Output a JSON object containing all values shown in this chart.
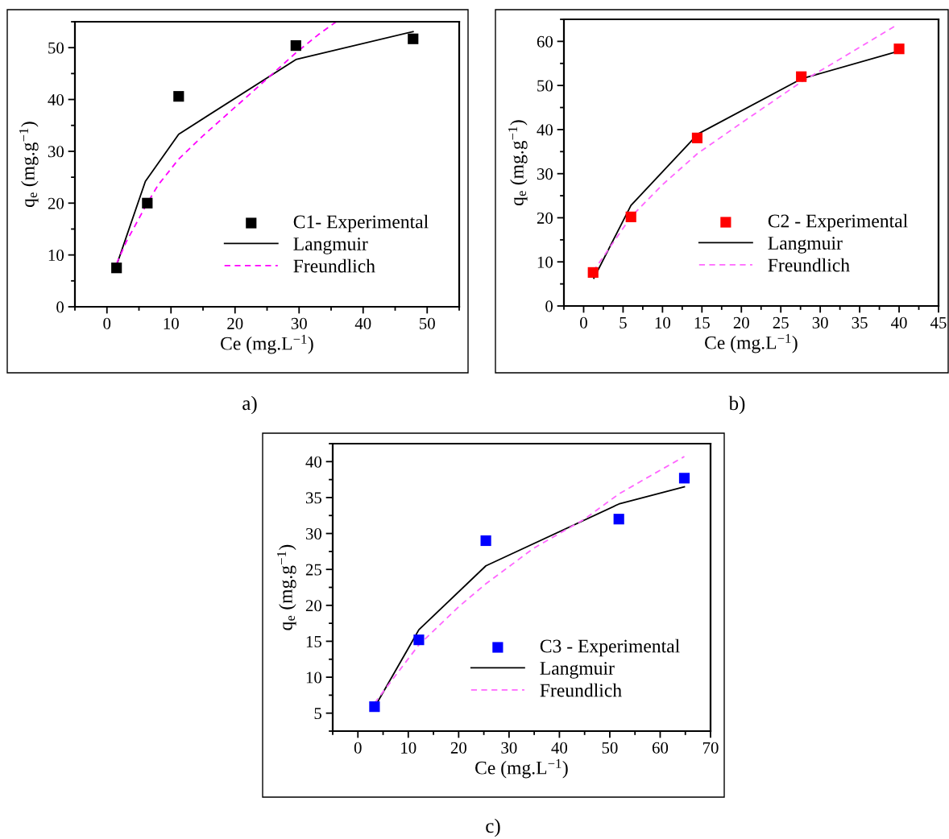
{
  "chart_data": [
    {
      "type": "line",
      "xlabel": "Ce (mg.L$^{−1}$)",
      "ylabel": "q$_{e}$ (mg.g$^{−1}$)",
      "annotations": [
        "a)"
      ],
      "xlim": [
        -5,
        55
      ],
      "ylim": [
        0,
        55
      ],
      "xticks": [
        0,
        10,
        20,
        30,
        40,
        50
      ],
      "yticks": [
        0,
        10,
        20,
        30,
        40,
        50
      ],
      "legend": "bottom right",
      "grid": false,
      "series": [
        {
          "name": "C1- Experimental",
          "type": "scatter",
          "marker": "square",
          "color": "#000000",
          "x": [
            1.5,
            6.3,
            11.2,
            29.5,
            47.8
          ],
          "values": [
            7.5,
            20,
            40.6,
            50.4,
            51.7
          ]
        },
        {
          "name": "Langmuir",
          "type": "line",
          "line_style": "solid",
          "color": "#000000",
          "x": [
            1.5,
            6,
            11.2,
            29.5,
            47.8
          ],
          "values": [
            8,
            24.2,
            33.3,
            47.7,
            53.1
          ]
        },
        {
          "name": "Freundlich",
          "type": "line",
          "line_style": "dashed",
          "color": "#ff00ff",
          "x": [
            1.5,
            3,
            6.3,
            8,
            11.2,
            15,
            20,
            25,
            29.5,
            33,
            35.8
          ],
          "values": [
            8.3,
            12.5,
            20,
            23.5,
            28.5,
            33,
            38.5,
            44,
            49,
            52.5,
            55
          ]
        }
      ]
    },
    {
      "type": "line",
      "xlabel": "Ce (mg.L$^{−1}$)",
      "ylabel": "q$_{e}$ (mg.g$^{−1}$)",
      "annotations": [
        "b)"
      ],
      "xlim": [
        -2.5,
        45
      ],
      "ylim": [
        0,
        65
      ],
      "xticks": [
        0,
        5,
        10,
        15,
        20,
        25,
        30,
        35,
        40,
        45
      ],
      "yticks": [
        0,
        10,
        20,
        30,
        40,
        50,
        60
      ],
      "legend": "bottom right",
      "grid": false,
      "series": [
        {
          "name": "C2 - Experimental",
          "type": "scatter",
          "marker": "square",
          "color": "#ff0000",
          "x": [
            1.2,
            6,
            14.4,
            27.6,
            40
          ],
          "values": [
            7.6,
            20.2,
            38.1,
            52,
            58.3
          ]
        },
        {
          "name": "Langmuir",
          "type": "line",
          "line_style": "solid",
          "color": "#000000",
          "x": [
            1.3,
            6,
            14.5,
            27.6,
            40
          ],
          "values": [
            6.3,
            22.8,
            39,
            51.5,
            57.8
          ]
        },
        {
          "name": "Freundlich",
          "type": "line",
          "line_style": "dashed",
          "color": "#ff66ff",
          "x": [
            1.2,
            6,
            10,
            14.4,
            20,
            27.6,
            33,
            39.5
          ],
          "values": [
            7.8,
            20.2,
            27.5,
            34.5,
            41.5,
            50.8,
            56.5,
            63.5
          ]
        }
      ]
    },
    {
      "type": "line",
      "xlabel": "Ce (mg.L$^{−1}$)",
      "ylabel": "q$_{e}$ (mg.g$^{−1}$)",
      "annotations": [
        "c)"
      ],
      "xlim": [
        -5,
        70
      ],
      "ylim": [
        2.5,
        42.5
      ],
      "xticks": [
        0,
        10,
        20,
        30,
        40,
        50,
        60,
        70
      ],
      "yticks": [
        5,
        10,
        15,
        20,
        25,
        30,
        35,
        40
      ],
      "legend": "bottom right",
      "grid": false,
      "series": [
        {
          "name": "C3 - Experimental",
          "type": "scatter",
          "marker": "square",
          "color": "#0000ff",
          "x": [
            3.3,
            12.1,
            25.4,
            51.8,
            64.8
          ],
          "values": [
            5.9,
            15.2,
            29,
            32,
            37.7
          ]
        },
        {
          "name": "Langmuir",
          "type": "line",
          "line_style": "solid",
          "color": "#000000",
          "x": [
            3.3,
            12.1,
            25.4,
            51.8,
            64.8
          ],
          "values": [
            5.8,
            16.6,
            25.5,
            34.1,
            36.5
          ]
        },
        {
          "name": "Freundlich",
          "type": "line",
          "line_style": "dashed",
          "color": "#ff66ff",
          "x": [
            3.3,
            12.1,
            20,
            25.4,
            35,
            45,
            51.8,
            58,
            64.8
          ],
          "values": [
            6.4,
            14.5,
            19.8,
            23,
            28,
            32,
            35.5,
            38,
            40.7
          ]
        }
      ]
    }
  ]
}
